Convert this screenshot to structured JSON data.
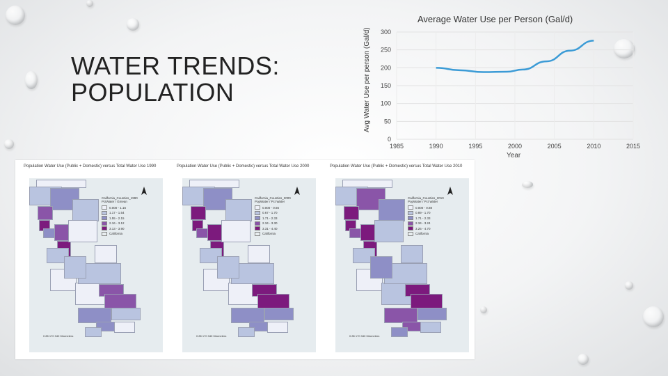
{
  "slide": {
    "title_line1": "WATER TRENDS:",
    "title_line2": "POPULATION"
  },
  "chart_data": {
    "type": "line",
    "title": "Average Water Use per Person (Gal/d)",
    "xlabel": "Year",
    "ylabel": "Avg Water Use per person (Gal/d)",
    "x_ticks": [
      "1985",
      "1990",
      "1995",
      "2000",
      "2005",
      "2010",
      "2015"
    ],
    "y_ticks": [
      "0",
      "50",
      "100",
      "150",
      "200",
      "250",
      "300"
    ],
    "xlim": [
      1985,
      2015
    ],
    "ylim": [
      0,
      300
    ],
    "grid": true,
    "series": [
      {
        "x": [
          1990,
          1993,
          1996,
          1999,
          2001,
          2004,
          2007,
          2010
        ],
        "values": [
          200,
          193,
          188,
          189,
          195,
          218,
          248,
          276
        ],
        "color": "#3b9bd6"
      }
    ]
  },
  "maps": [
    {
      "title": "Population Water Use (Public + Domestic) versus Total Water Use 1990",
      "legend_title": "California_Counties_1990\nPctWater / Gmean",
      "legend_items": [
        "0.000 - 1.16",
        "1.17 - 1.54",
        "1.55 - 2.15",
        "2.16 - 3.12",
        "3.13 - 3.90",
        "California"
      ],
      "scale": "0   85  170       340 Kilometers"
    },
    {
      "title": "Population Water Use (Public + Domestic) versus Total Water Use 2000",
      "legend_title": "California_Counties_2000\nPopWater / Pct Water",
      "legend_items": [
        "0.000 - 0.66",
        "0.67 - 1.70",
        "1.71 - 2.33",
        "2.34 - 3.30",
        "3.31 - 4.40",
        "California"
      ],
      "scale": "0   85  170       340 Kilometers"
    },
    {
      "title": "Population Water Use (Public + Domestic) versus Total Water Use 2010",
      "legend_title": "California_Counties_2010\nPopWater / Pct Water",
      "legend_items": [
        "0.000 - 0.88",
        "0.89 - 1.70",
        "1.71 - 2.33",
        "2.34 - 3.24",
        "3.25 - 4.70",
        "California"
      ],
      "scale": "0   85  170       340 Kilometers"
    }
  ],
  "colors": {
    "legend_ramp": [
      "#eef0f8",
      "#b9c4e0",
      "#8e8fc6",
      "#8a55a8",
      "#7c1a7d",
      "#e8eef0"
    ],
    "line": "#3b9bd6"
  }
}
